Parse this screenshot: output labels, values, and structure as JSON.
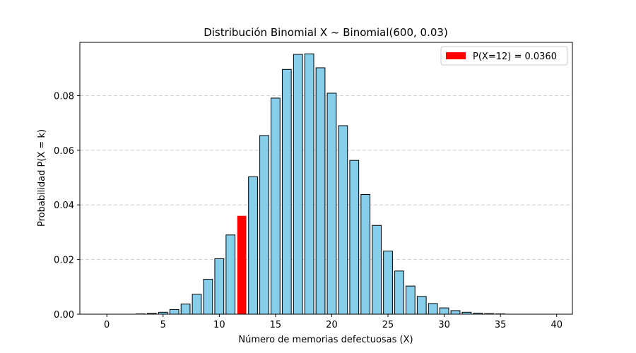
{
  "chart_data": {
    "type": "bar",
    "title": "Distribución Binomial X ~ Binomial(600, 0.03)",
    "xlabel": "Número de memorias defectuosas (X)",
    "ylabel": "Probabilidad P(X = k)",
    "xlim": [
      -2.4,
      41.4
    ],
    "ylim": [
      0,
      0.0995
    ],
    "xticks": [
      0,
      5,
      10,
      15,
      20,
      25,
      30,
      35,
      40
    ],
    "yticks": [
      0.0,
      0.02,
      0.04,
      0.06,
      0.08
    ],
    "ytick_labels": [
      "0.00",
      "0.02",
      "0.04",
      "0.06",
      "0.08"
    ],
    "grid": "y dashed",
    "legend_position": "top-right",
    "bar_color": "#87CEEB",
    "highlight_color": "#FF0000",
    "edge_color": "#000000",
    "series": [
      {
        "name": "",
        "x": [
          0,
          1,
          2,
          3,
          4,
          5,
          6,
          7,
          8,
          9,
          10,
          11,
          12,
          13,
          14,
          15,
          16,
          17,
          18,
          19,
          20,
          21,
          22,
          23,
          24,
          25,
          26,
          27,
          28,
          29,
          30,
          31,
          32,
          33,
          34,
          35,
          36,
          37,
          38,
          39
        ],
        "values": [
          0.0,
          0.0,
          0.0,
          0.0001,
          0.0003,
          0.0007,
          0.0017,
          0.0037,
          0.0073,
          0.0128,
          0.0203,
          0.029,
          0.036,
          0.0503,
          0.0654,
          0.0791,
          0.0896,
          0.0951,
          0.0953,
          0.0902,
          0.0809,
          0.069,
          0.0563,
          0.0438,
          0.0325,
          0.0231,
          0.0158,
          0.0103,
          0.0065,
          0.0039,
          0.0023,
          0.0013,
          0.0007,
          0.0004,
          0.0002,
          0.0001,
          0.0,
          0.0,
          0.0,
          0.0
        ]
      }
    ],
    "highlight": {
      "x": 12,
      "value": 0.036,
      "label": "P(X=12) = 0.0360"
    }
  }
}
